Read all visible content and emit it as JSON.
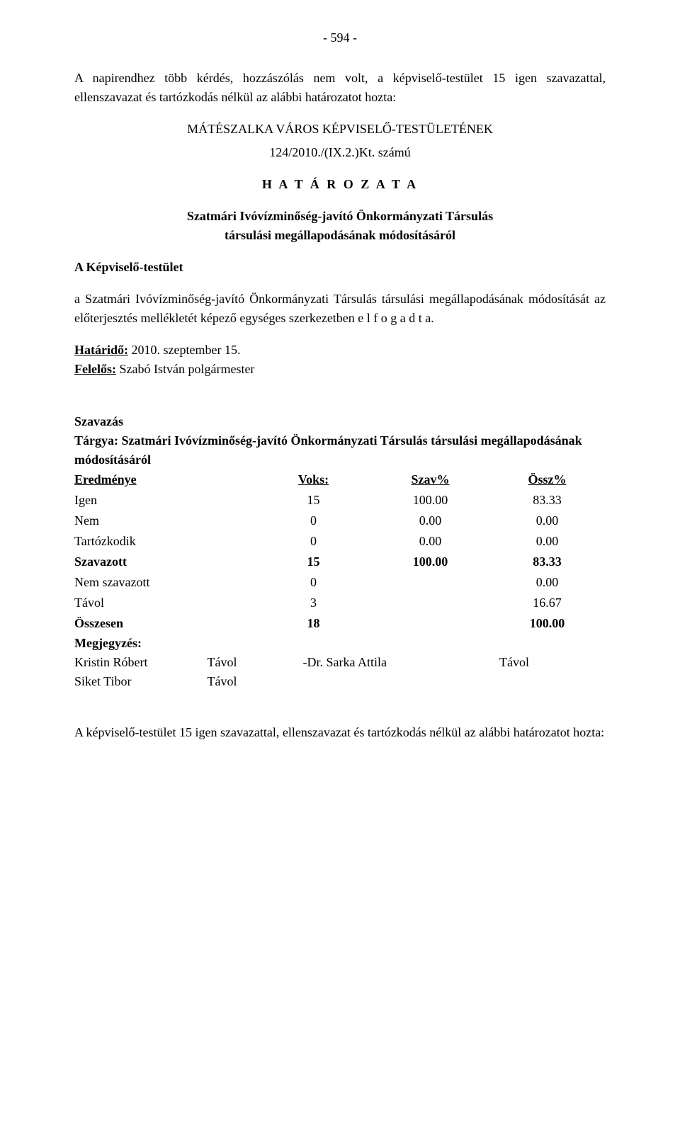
{
  "page_number": "- 594 -",
  "intro_para": "A napirendhez több kérdés, hozzászólás nem volt, a képviselő-testület 15 igen szavazattal, ellenszavazat és tartózkodás nélkül az alábbi határozatot hozta:",
  "council_name": "MÁTÉSZALKA VÁROS KÉPVISELŐ-TESTÜLETÉNEK",
  "ref_number": "124/2010./(IX.2.)Kt. számú",
  "hataroz_label": "H A T Á R O Z A T A",
  "subject_line1": "Szatmári Ivóvízminőség-javító Önkormányzati Társulás",
  "subject_line2": "társulási megállapodásának módosításáról",
  "kt_label": "A Képviselő-testület",
  "body_para": "a Szatmári Ivóvízminőség-javító Önkormányzati Társulás társulási megállapodásának módosítását az előterjesztés  mellékletét képező egységes szerkezetben  e l f o g a d t a.",
  "deadline_label": "Határidő:",
  "deadline_value": " 2010. szeptember 15.",
  "responsible_label": "Felelős:",
  "responsible_value": " Szabó István polgármester",
  "vote": {
    "title": "Szavazás",
    "subject_label": "Tárgya: Szatmári Ivóvízminőség-javító Önkormányzati Társulás társulási megállapodásának módosításáról",
    "headers": [
      "Eredménye",
      "Voks:",
      "Szav%",
      "Össz%"
    ],
    "rows": [
      {
        "label": "Igen",
        "voks": "15",
        "szav": "100.00",
        "ossz": "83.33",
        "bold": false
      },
      {
        "label": "Nem",
        "voks": "0",
        "szav": "0.00",
        "ossz": "0.00",
        "bold": false
      },
      {
        "label": "Tartózkodik",
        "voks": "0",
        "szav": "0.00",
        "ossz": "0.00",
        "bold": false
      },
      {
        "label": "Szavazott",
        "voks": "15",
        "szav": "100.00",
        "ossz": "83.33",
        "bold": true
      },
      {
        "label": "Nem szavazott",
        "voks": "0",
        "szav": "",
        "ossz": "0.00",
        "bold": false
      },
      {
        "label": "Távol",
        "voks": "3",
        "szav": "",
        "ossz": "16.67",
        "bold": false
      },
      {
        "label": "Összesen",
        "voks": "18",
        "szav": "",
        "ossz": "100.00",
        "bold": true
      }
    ],
    "comment_label": "Megjegyzés:",
    "comments": [
      {
        "name": "Kristin Róbert",
        "status": "Távol",
        "name2": "-Dr. Sarka Attila",
        "status2": "Távol"
      },
      {
        "name": "Siket Tibor",
        "status": "Távol",
        "name2": "",
        "status2": ""
      }
    ]
  },
  "closing_para": "A képviselő-testület 15 igen szavazattal, ellenszavazat és tartózkodás nélkül az alábbi határozatot hozta:"
}
